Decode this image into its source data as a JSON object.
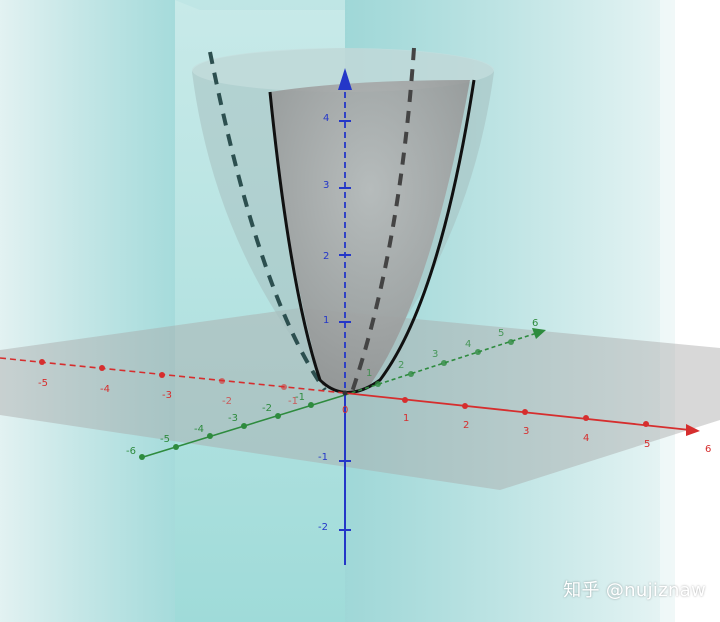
{
  "axes": {
    "x": {
      "color": "#d62e2e",
      "ticks": [
        "-5",
        "-4",
        "-3",
        "-2",
        "-1",
        "0",
        "1",
        "2",
        "3",
        "4",
        "5",
        "6"
      ]
    },
    "y": {
      "color": "#2e8b3e",
      "ticks": [
        "-6",
        "-5",
        "-4",
        "-3",
        "-2",
        "-1",
        "1",
        "2",
        "3",
        "4",
        "5",
        "6"
      ]
    },
    "z": {
      "color": "#2437c8",
      "ticks": [
        "4",
        "3",
        "2",
        "1",
        "-1",
        "-2"
      ]
    }
  },
  "colors": {
    "plane": "#7ccfd0",
    "surface": "#9a9a9a",
    "curve": "#111111"
  },
  "watermark": "知乎 @nujiznaw"
}
